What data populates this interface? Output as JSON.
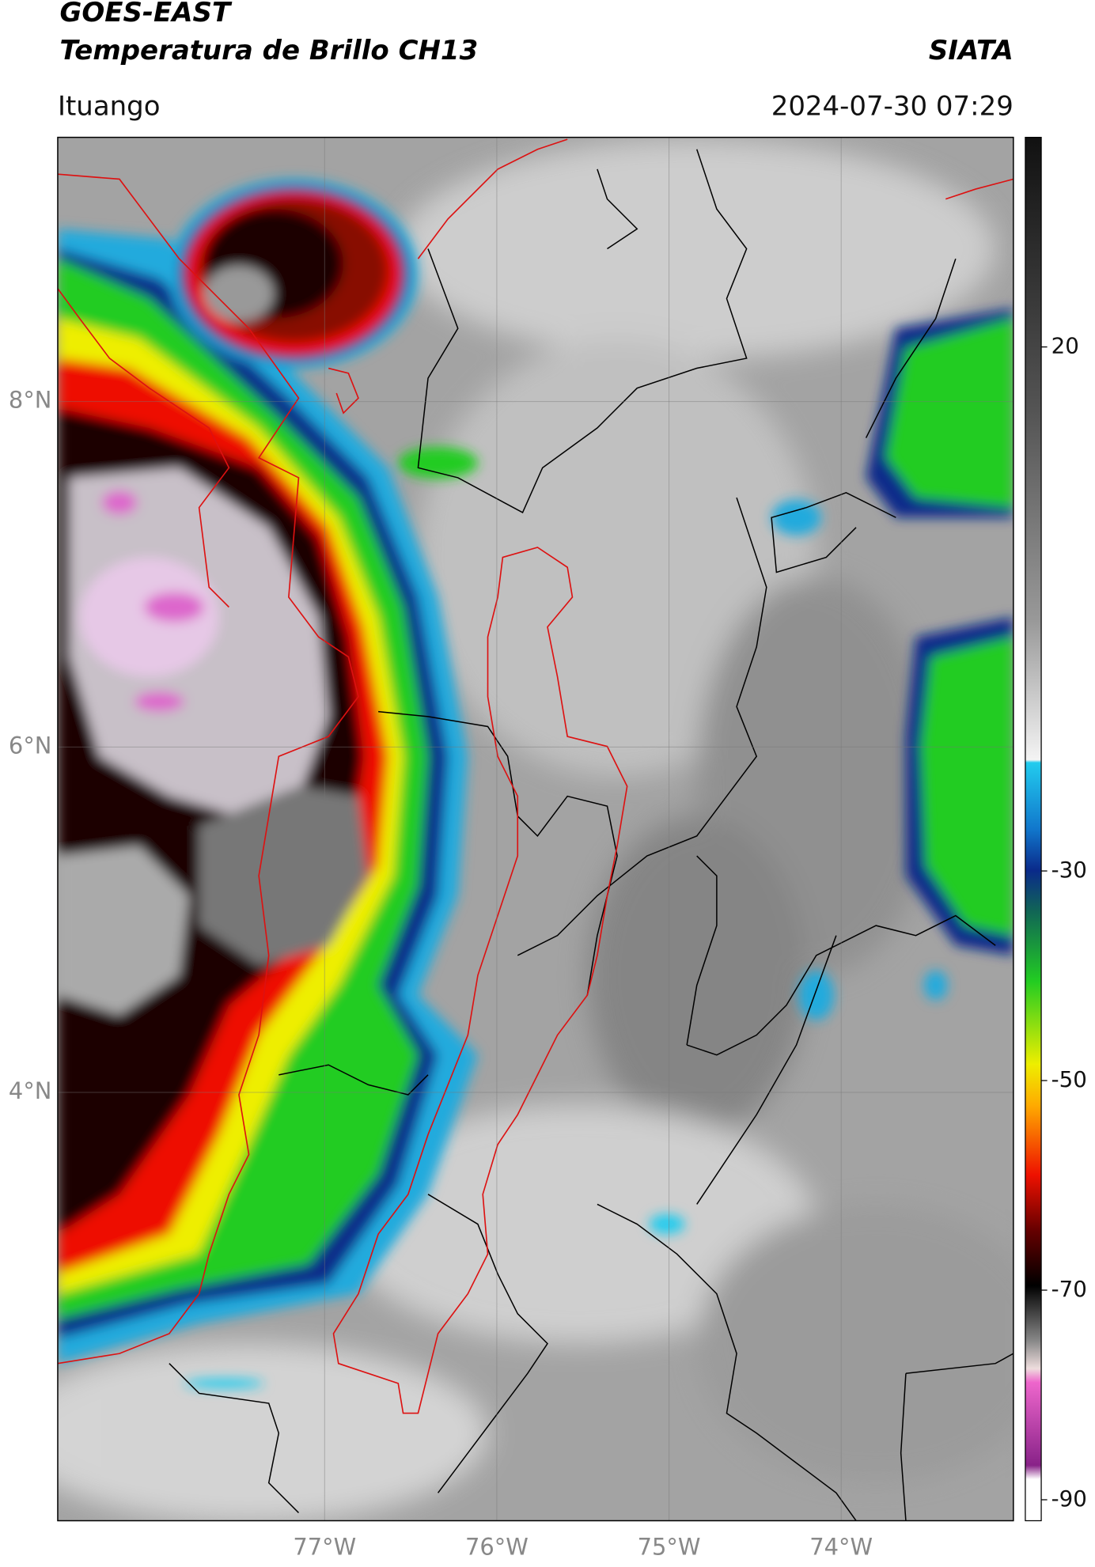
{
  "header": {
    "title": "GOES-EAST",
    "subtitle": "Temperatura de Brillo CH13",
    "agency": "SIATA",
    "location": "Ituango",
    "datetime": "2024-07-30 07:29"
  },
  "map": {
    "lonlim": [
      -78.55,
      -73.0
    ],
    "latlim": [
      1.52,
      9.53
    ],
    "lonticks": [
      {
        "value": -77,
        "label": "77°W"
      },
      {
        "value": -76,
        "label": "76°W"
      },
      {
        "value": -75,
        "label": "75°W"
      },
      {
        "value": -74,
        "label": "74°W"
      }
    ],
    "latticks": [
      {
        "value": 8,
        "label": "8°N"
      },
      {
        "value": 6,
        "label": "6°N"
      },
      {
        "value": 4,
        "label": "4°N"
      }
    ],
    "grid": true
  },
  "colorbar": {
    "lim": [
      -92,
      40
    ],
    "ticks": [
      20,
      -30,
      -50,
      -70,
      -90
    ]
  }
}
